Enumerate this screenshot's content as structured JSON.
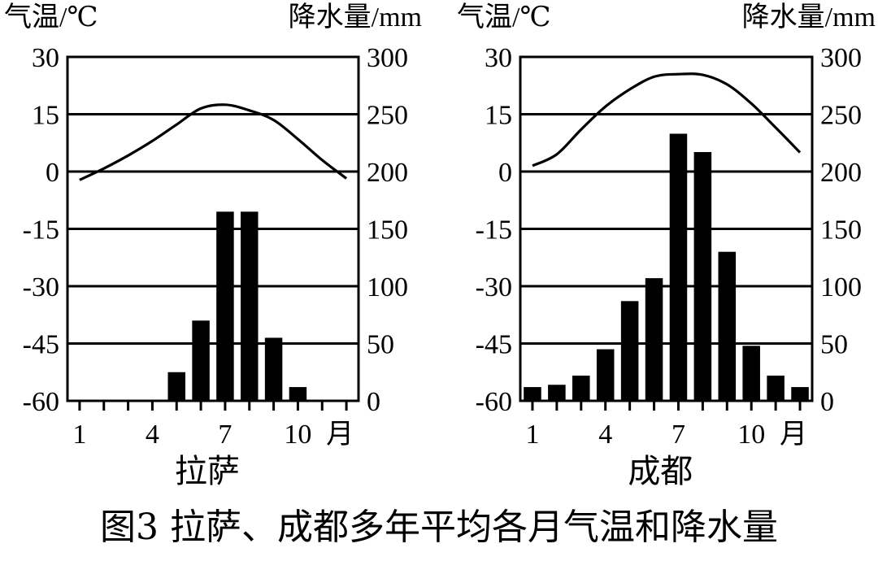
{
  "figure": {
    "caption": "图3  拉萨、成都多年平均各月气温和降水量"
  },
  "colors": {
    "ink": "#000000",
    "background": "#ffffff"
  },
  "chart_data": [
    {
      "type": "bar+line",
      "station": "拉萨",
      "left_axis_label": "气温/℃",
      "right_axis_label": "降水量/mm",
      "x_unit": "月",
      "x_tick_labels": [
        "1",
        "4",
        "7",
        "10"
      ],
      "months": [
        1,
        2,
        3,
        4,
        5,
        6,
        7,
        8,
        9,
        10,
        11,
        12
      ],
      "temp_ticks": [
        "30",
        "15",
        "0",
        "-15",
        "-30",
        "-45",
        "-60"
      ],
      "precip_ticks": [
        "300",
        "250",
        "200",
        "150",
        "100",
        "50",
        "0"
      ],
      "temp_ylim": [
        -60,
        30
      ],
      "precip_ylim": [
        0,
        300
      ],
      "grid": true,
      "temperature": [
        -2.2,
        0.8,
        4.2,
        8.0,
        12.3,
        16.5,
        17.5,
        16.0,
        13.5,
        8.5,
        3.0,
        -1.8
      ],
      "precipitation": [
        0,
        0,
        0,
        0,
        25,
        70,
        165,
        165,
        55,
        12,
        0,
        0
      ]
    },
    {
      "type": "bar+line",
      "station": "成都",
      "left_axis_label": "气温/℃",
      "right_axis_label": "降水量/mm",
      "x_unit": "月",
      "x_tick_labels": [
        "1",
        "4",
        "7",
        "10"
      ],
      "months": [
        1,
        2,
        3,
        4,
        5,
        6,
        7,
        8,
        9,
        10,
        11,
        12
      ],
      "temp_ticks": [
        "30",
        "15",
        "0",
        "-15",
        "-30",
        "-45",
        "-60"
      ],
      "precip_ticks": [
        "300",
        "250",
        "200",
        "150",
        "100",
        "50",
        "0"
      ],
      "temp_ylim": [
        -60,
        30
      ],
      "precip_ylim": [
        0,
        300
      ],
      "grid": true,
      "temperature": [
        1.5,
        4.5,
        11.0,
        17.0,
        21.5,
        24.8,
        25.5,
        25.3,
        22.8,
        17.8,
        11.5,
        5.0
      ],
      "precipitation": [
        12,
        14,
        22,
        45,
        87,
        107,
        233,
        217,
        130,
        48,
        22,
        12
      ]
    }
  ]
}
